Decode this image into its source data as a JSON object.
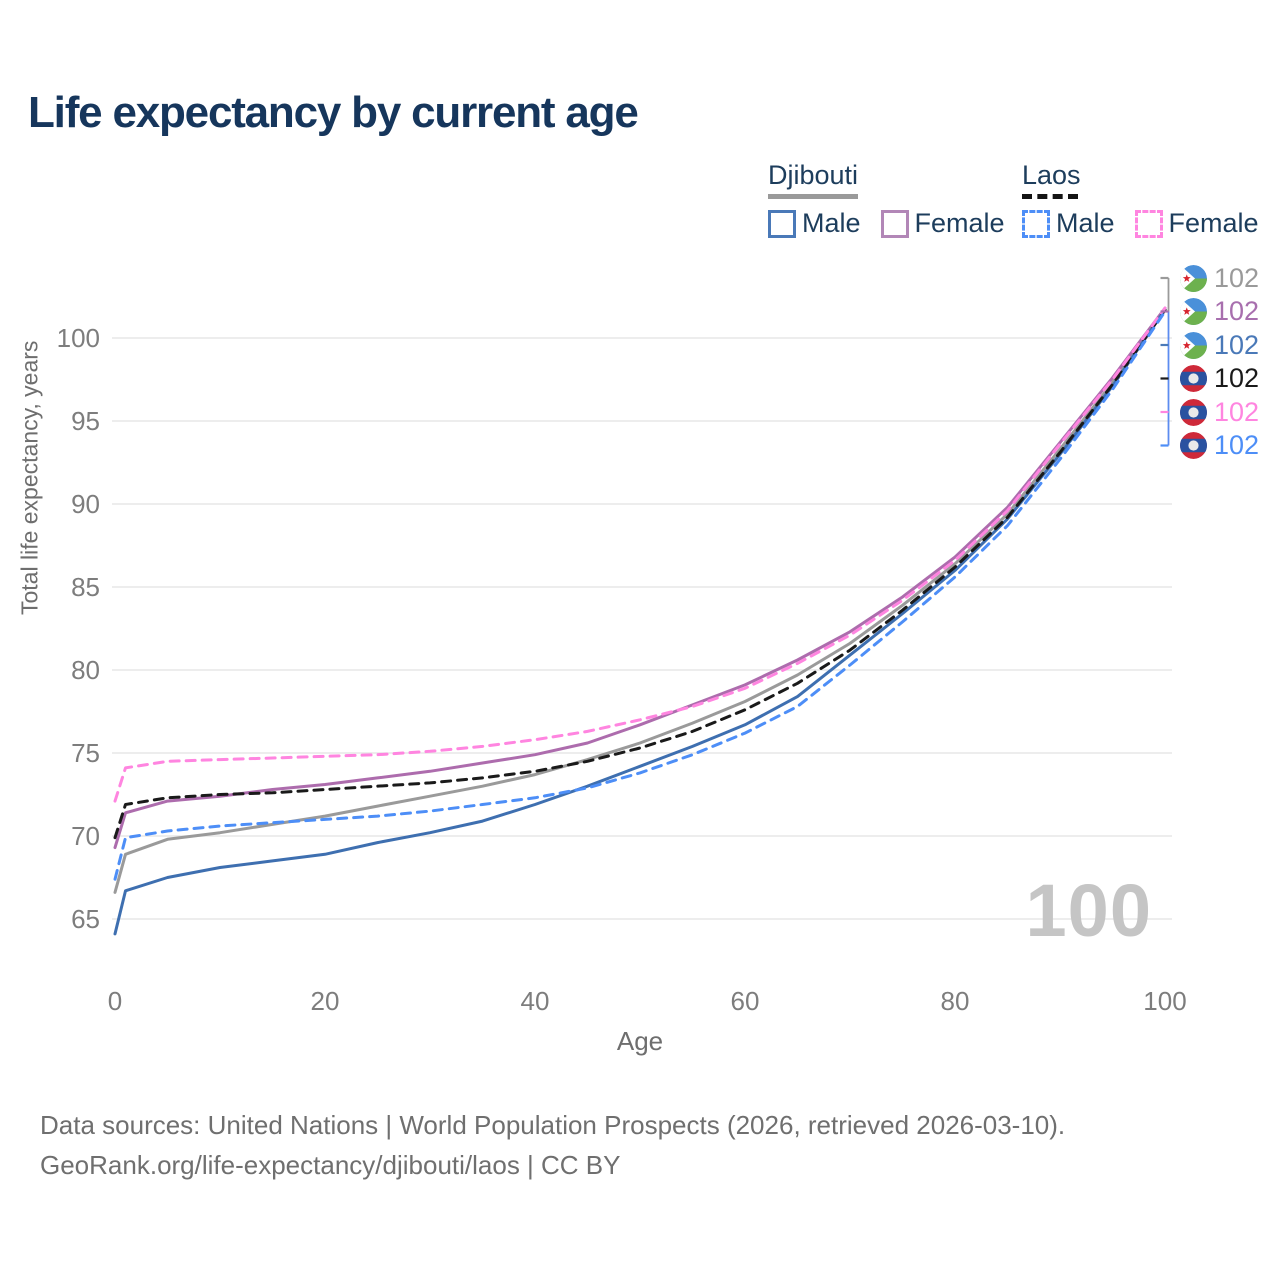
{
  "title": "Life expectancy by current age",
  "legend": {
    "groups": [
      {
        "name": "Djibouti",
        "underline_style": "solid",
        "underline_color": "#9a9a9a",
        "items": [
          {
            "label": "Male",
            "color": "#4a79b8",
            "dashed": false
          },
          {
            "label": "Female",
            "color": "#b287b7",
            "dashed": false
          }
        ]
      },
      {
        "name": "Laos",
        "underline_style": "dashed",
        "underline_color": "#141414",
        "items": [
          {
            "label": "Male",
            "color": "#4d8ef7",
            "dashed": true
          },
          {
            "label": "Female",
            "color": "#ff85e0",
            "dashed": true
          }
        ]
      }
    ]
  },
  "chart_data": {
    "type": "line",
    "title": "Life expectancy by current age",
    "xlabel": "Age",
    "ylabel": "Total life expectancy, years",
    "x_ticks": [
      0,
      20,
      40,
      60,
      80,
      100
    ],
    "y_ticks": [
      100,
      95,
      90,
      85,
      80,
      75,
      70,
      65
    ],
    "xlim": [
      0,
      100
    ],
    "ylim": [
      63,
      103
    ],
    "grid": "horizontal-only",
    "legend_position": "top-right",
    "x": [
      0,
      1,
      5,
      10,
      15,
      20,
      25,
      30,
      35,
      40,
      45,
      50,
      55,
      60,
      65,
      70,
      75,
      80,
      85,
      90,
      95,
      100
    ],
    "series": [
      {
        "name": "Djibouti Total",
        "country": "Djibouti",
        "sex": "total",
        "color": "#9a9a9a",
        "dash": false,
        "label_color": "#9a9a9a",
        "end_label": "102",
        "flag": "djibouti",
        "values": [
          66.6,
          68.9,
          69.8,
          70.2,
          70.7,
          71.2,
          71.8,
          72.4,
          73.0,
          73.7,
          74.6,
          75.6,
          76.8,
          78.1,
          79.7,
          81.6,
          83.9,
          86.4,
          89.4,
          93.3,
          97.3,
          101.7
        ]
      },
      {
        "name": "Djibouti Female",
        "country": "Djibouti",
        "sex": "female",
        "color": "#ad6cad",
        "dash": false,
        "label_color": "#a86fae",
        "end_label": "102",
        "flag": "djibouti",
        "values": [
          69.3,
          71.4,
          72.1,
          72.4,
          72.8,
          73.1,
          73.5,
          73.9,
          74.4,
          74.9,
          75.6,
          76.7,
          77.9,
          79.1,
          80.6,
          82.3,
          84.4,
          86.8,
          89.8,
          93.7,
          97.6,
          101.8
        ]
      },
      {
        "name": "Djibouti Male",
        "country": "Djibouti",
        "sex": "male",
        "color": "#3e6fb0",
        "dash": false,
        "label_color": "#4a79b8",
        "end_label": "102",
        "flag": "djibouti",
        "values": [
          64.1,
          66.7,
          67.5,
          68.1,
          68.5,
          68.9,
          69.6,
          70.2,
          70.9,
          71.9,
          73.0,
          74.2,
          75.4,
          76.7,
          78.4,
          80.9,
          83.4,
          86.0,
          89.1,
          93.0,
          97.1,
          101.7
        ]
      },
      {
        "name": "Laos Total",
        "country": "Laos",
        "sex": "total",
        "color": "#1a1a1a",
        "dash": true,
        "label_color": "#1a1a1a",
        "end_label": "102",
        "flag": "laos",
        "values": [
          69.9,
          71.9,
          72.3,
          72.5,
          72.6,
          72.8,
          73.0,
          73.2,
          73.5,
          73.9,
          74.5,
          75.3,
          76.3,
          77.6,
          79.2,
          81.2,
          83.6,
          86.2,
          89.2,
          93.1,
          97.2,
          101.7
        ]
      },
      {
        "name": "Laos Female",
        "country": "Laos",
        "sex": "female",
        "color": "#ff85e0",
        "dash": true,
        "label_color": "#ff85e0",
        "end_label": "102",
        "flag": "laos",
        "values": [
          72.1,
          74.1,
          74.5,
          74.6,
          74.7,
          74.8,
          74.9,
          75.1,
          75.4,
          75.8,
          76.3,
          77.0,
          77.8,
          78.9,
          80.4,
          82.1,
          84.2,
          86.6,
          89.6,
          93.6,
          97.5,
          101.8
        ]
      },
      {
        "name": "Laos Male",
        "country": "Laos",
        "sex": "male",
        "color": "#4d8ef7",
        "dash": true,
        "label_color": "#4d8ef7",
        "end_label": "102",
        "flag": "laos",
        "values": [
          67.4,
          69.9,
          70.3,
          70.6,
          70.8,
          71.0,
          71.2,
          71.5,
          71.9,
          72.3,
          72.9,
          73.8,
          74.9,
          76.2,
          77.8,
          80.3,
          82.9,
          85.6,
          88.7,
          92.7,
          96.9,
          101.6
        ]
      }
    ],
    "annotations": {
      "current_age_watermark": "100"
    }
  },
  "axes": {
    "x_title": "Age",
    "y_title": "Total life expectancy, years"
  },
  "watermark": "100",
  "footer": {
    "line1": "Data sources: United Nations | World Population Prospects (2026, retrieved 2026-03-10).",
    "line2": "GeoRank.org/life-expectancy/djibouti/laos | CC BY"
  },
  "colors": {
    "title_text": "#16365c",
    "axis_text": "#7d7d7d",
    "gridline": "#e7e7e7",
    "connector_blue": "#5c8cf0",
    "connector_gray": "#9a9a9a",
    "flag_djibouti_blue": "#4a90d9",
    "flag_djibouti_green": "#6db14e",
    "flag_star_red": "#d7252f",
    "flag_laos_red": "#ce2939",
    "flag_laos_blue": "#2a52a0"
  }
}
